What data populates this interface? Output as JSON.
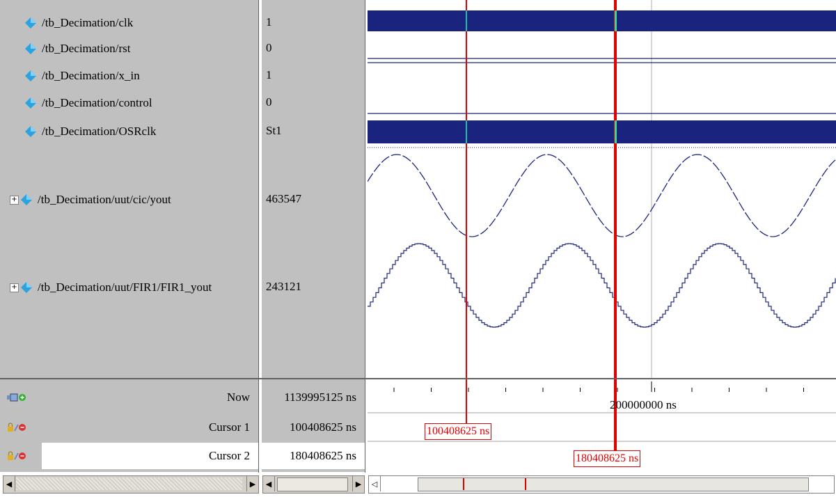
{
  "signals": [
    {
      "name": "/tb_Decimation/clk",
      "value": "1",
      "expandable": false
    },
    {
      "name": "/tb_Decimation/rst",
      "value": "0",
      "expandable": false
    },
    {
      "name": "/tb_Decimation/x_in",
      "value": "1",
      "expandable": false
    },
    {
      "name": "/tb_Decimation/control",
      "value": "0",
      "expandable": false
    },
    {
      "name": "/tb_Decimation/OSRclk",
      "value": "St1",
      "expandable": false
    },
    {
      "name": "/tb_Decimation/uut/cic/yout",
      "value": "463547",
      "expandable": true
    },
    {
      "name": "/tb_Decimation/uut/FIR1/FIR1_yout",
      "value": "243121",
      "expandable": true
    }
  ],
  "cursors": {
    "now": {
      "label": "Now",
      "value": "1139995125 ns"
    },
    "cursor1": {
      "label": "Cursor 1",
      "value": "100408625 ns",
      "tag": "100408625 ns"
    },
    "cursor2": {
      "label": "Cursor 2",
      "value": "180408625 ns",
      "tag": "180408625 ns"
    }
  },
  "timeline": {
    "major_label": "200000000 ns"
  },
  "icons": {
    "signal": "blue-diamond-icon",
    "expand": "plus-box-icon",
    "now_tools": "now-toolbar-icons",
    "cursor_tools": "lock-edit-remove-icons"
  },
  "colors": {
    "wave": "#1a237e",
    "cursor": "#e00000",
    "cursor_active_fill": "#33dd99",
    "pane_bg": "#c0c0c0"
  }
}
